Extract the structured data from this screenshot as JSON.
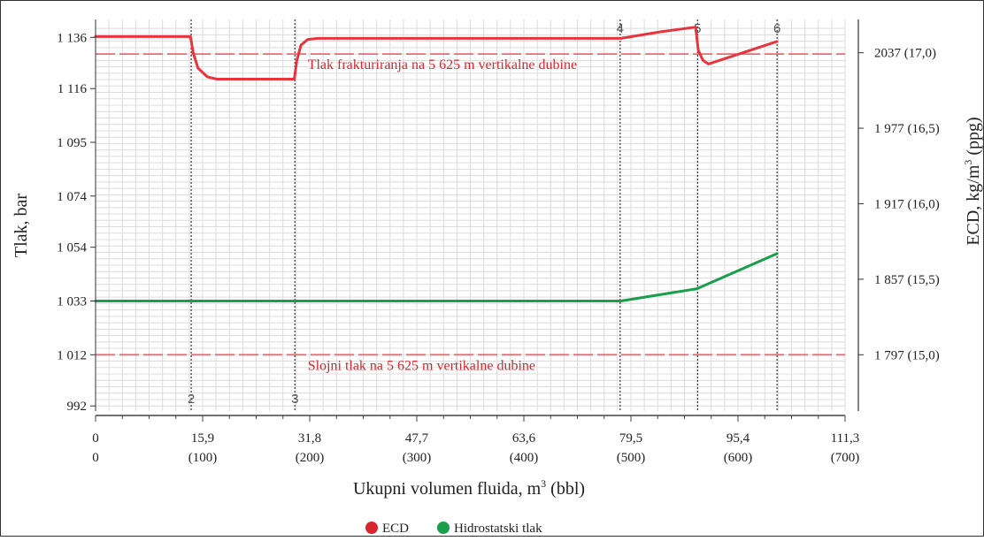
{
  "chart_data": {
    "type": "line",
    "ylabel_left": "Tlak, bar",
    "ylabel_right_prefix": "ECD, kg/m",
    "ylabel_right_sup": "3",
    "ylabel_right_suffix": " (ppg)",
    "xlabel_prefix": "Ukupni volumen fluida, m",
    "xlabel_sup": "3",
    "xlabel_suffix": " (bbl)",
    "x_range": [
      0,
      111.3
    ],
    "y_range": [
      990,
      1143
    ],
    "left_ticks": [
      {
        "value": 1136,
        "label": "1 136"
      },
      {
        "value": 1116,
        "label": "1 116"
      },
      {
        "value": 1095,
        "label": "1 095"
      },
      {
        "value": 1074,
        "label": "1 074"
      },
      {
        "value": 1054,
        "label": "1 054"
      },
      {
        "value": 1033,
        "label": "1 033"
      },
      {
        "value": 1012,
        "label": "1 012"
      },
      {
        "value": 992,
        "label": "992"
      }
    ],
    "right_ticks": [
      {
        "value": 1130,
        "label": "2037 (17,0)"
      },
      {
        "value": 1100.5,
        "label": "1 977 (16,5)"
      },
      {
        "value": 1071,
        "label": "1 917 (16,0)"
      },
      {
        "value": 1041.5,
        "label": "1 857 (15,5)"
      },
      {
        "value": 1012,
        "label": "1 797 (15,0)"
      }
    ],
    "x_ticks": [
      {
        "value": 0,
        "label_m3": "0",
        "label_bbl": "0"
      },
      {
        "value": 15.9,
        "label_m3": "15,9",
        "label_bbl": "(100)"
      },
      {
        "value": 31.8,
        "label_m3": "31,8",
        "label_bbl": "(200)"
      },
      {
        "value": 47.7,
        "label_m3": "47,7",
        "label_bbl": "(300)"
      },
      {
        "value": 63.6,
        "label_m3": "63,6",
        "label_bbl": "(400)"
      },
      {
        "value": 79.5,
        "label_m3": "79,5",
        "label_bbl": "(500)"
      },
      {
        "value": 95.4,
        "label_m3": "95,4",
        "label_bbl": "(600)"
      },
      {
        "value": 111.3,
        "label_m3": "111,3",
        "label_bbl": "(700)"
      }
    ],
    "markers": [
      {
        "label": "2",
        "x": 14.2,
        "pos": "bottom"
      },
      {
        "label": "3",
        "x": 29.6,
        "pos": "bottom"
      },
      {
        "label": "4",
        "x": 77.9,
        "pos": "top"
      },
      {
        "label": "5",
        "x": 89.4,
        "pos": "top"
      },
      {
        "label": "6",
        "x": 101.2,
        "pos": "top"
      }
    ],
    "reference_lines": [
      {
        "value": 1129.5,
        "label": "Tlak frakturiranja na 5 625 m vertikalne dubine",
        "label_x": 31.5
      },
      {
        "value": 1012,
        "label": "Slojni tlak na 5 625 m vertikalne dubine",
        "label_x": 31.5
      }
    ],
    "series": [
      {
        "name": "ECD",
        "color": "#e8343d",
        "points": [
          [
            0,
            1136.3
          ],
          [
            14.1,
            1136.3
          ],
          [
            14.5,
            1130
          ],
          [
            15.2,
            1124
          ],
          [
            16.6,
            1120.6
          ],
          [
            18,
            1119.7
          ],
          [
            29.5,
            1119.7
          ],
          [
            29.9,
            1127
          ],
          [
            30.5,
            1133
          ],
          [
            31.5,
            1135.2
          ],
          [
            33,
            1135.6
          ],
          [
            78,
            1135.6
          ],
          [
            84,
            1138.2
          ],
          [
            89.1,
            1140
          ],
          [
            89.5,
            1131
          ],
          [
            90.2,
            1127
          ],
          [
            91,
            1125.6
          ],
          [
            101.2,
            1134.4
          ]
        ]
      },
      {
        "name": "Hidrostatski tlak",
        "color": "#1a9e4b",
        "points": [
          [
            0,
            1033
          ],
          [
            78,
            1033
          ],
          [
            89.3,
            1037.8
          ],
          [
            101.2,
            1051.5
          ]
        ]
      }
    ],
    "legend": [
      {
        "name": "ECD",
        "color": "#d9262e"
      },
      {
        "name": "Hidrostatski tlak",
        "color": "#1a9e4b"
      }
    ],
    "legend_position": "bottom-center",
    "grid": true
  }
}
